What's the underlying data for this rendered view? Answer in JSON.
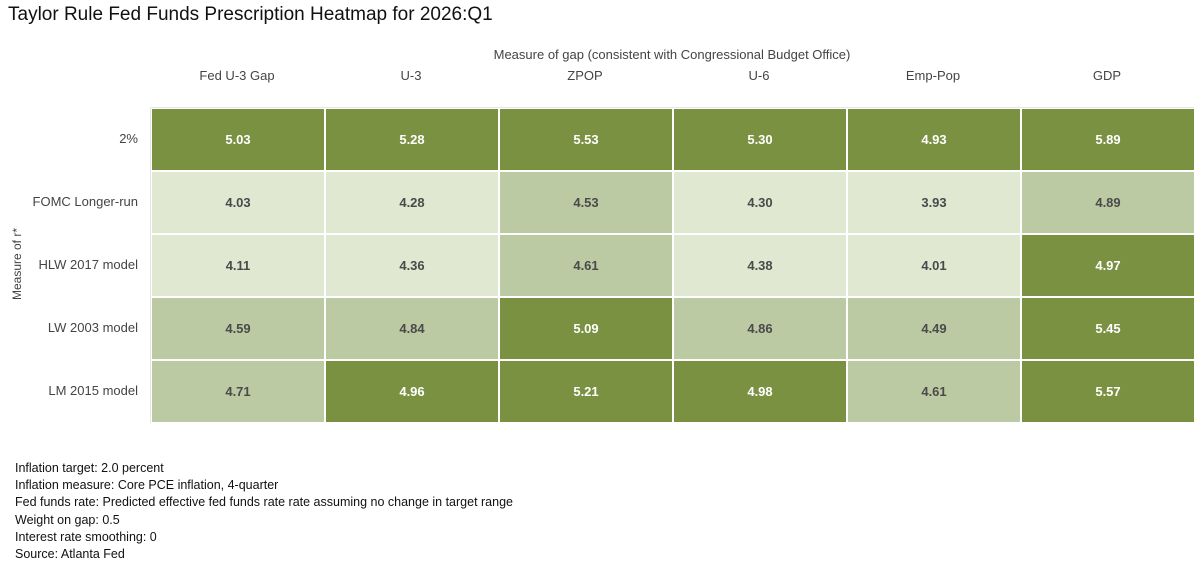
{
  "chart_data": {
    "type": "heatmap",
    "title": "Taylor Rule Fed Funds Prescription Heatmap for 2026:Q1",
    "xlabel": "Measure of gap (consistent with Congressional Budget Office)",
    "ylabel": "Measure of r*",
    "columns": [
      "Fed U-3 Gap",
      "U-3",
      "ZPOP",
      "U-6",
      "Emp-Pop",
      "GDP"
    ],
    "rows": [
      "2%",
      "FOMC Longer-run",
      "HLW 2017 model",
      "LW 2003 model",
      "LM 2015 model"
    ],
    "values": [
      [
        5.03,
        5.28,
        5.53,
        5.3,
        4.93,
        5.89
      ],
      [
        4.03,
        4.28,
        4.53,
        4.3,
        3.93,
        4.89
      ],
      [
        4.11,
        4.36,
        4.61,
        4.38,
        4.01,
        4.97
      ],
      [
        4.59,
        4.84,
        5.09,
        4.86,
        4.49,
        5.45
      ],
      [
        4.71,
        4.96,
        5.21,
        4.98,
        4.61,
        5.57
      ]
    ],
    "labels": [
      [
        "5.03",
        "5.28",
        "5.53",
        "5.30",
        "4.93",
        "5.89"
      ],
      [
        "4.03",
        "4.28",
        "4.53",
        "4.30",
        "3.93",
        "4.89"
      ],
      [
        "4.11",
        "4.36",
        "4.61",
        "4.38",
        "4.01",
        "4.97"
      ],
      [
        "4.59",
        "4.84",
        "5.09",
        "4.86",
        "4.49",
        "5.45"
      ],
      [
        "4.71",
        "4.96",
        "5.21",
        "4.98",
        "4.61",
        "5.57"
      ]
    ],
    "color_bins": [
      {
        "min": 4.9,
        "fill": "#7a9142",
        "text": "#ffffff"
      },
      {
        "min": 4.45,
        "fill": "#bccaa3",
        "text": "#4a4a4a"
      },
      {
        "min": 0,
        "fill": "#e1e8d2",
        "text": "#4a4a4a"
      }
    ]
  },
  "notes": [
    "Inflation target: 2.0 percent",
    "Inflation measure: Core PCE inflation, 4-quarter",
    "Fed funds rate: Predicted effective fed funds rate rate assuming no change in target range",
    "Weight on gap: 0.5",
    "Interest rate smoothing: 0",
    "Source: Atlanta Fed"
  ]
}
